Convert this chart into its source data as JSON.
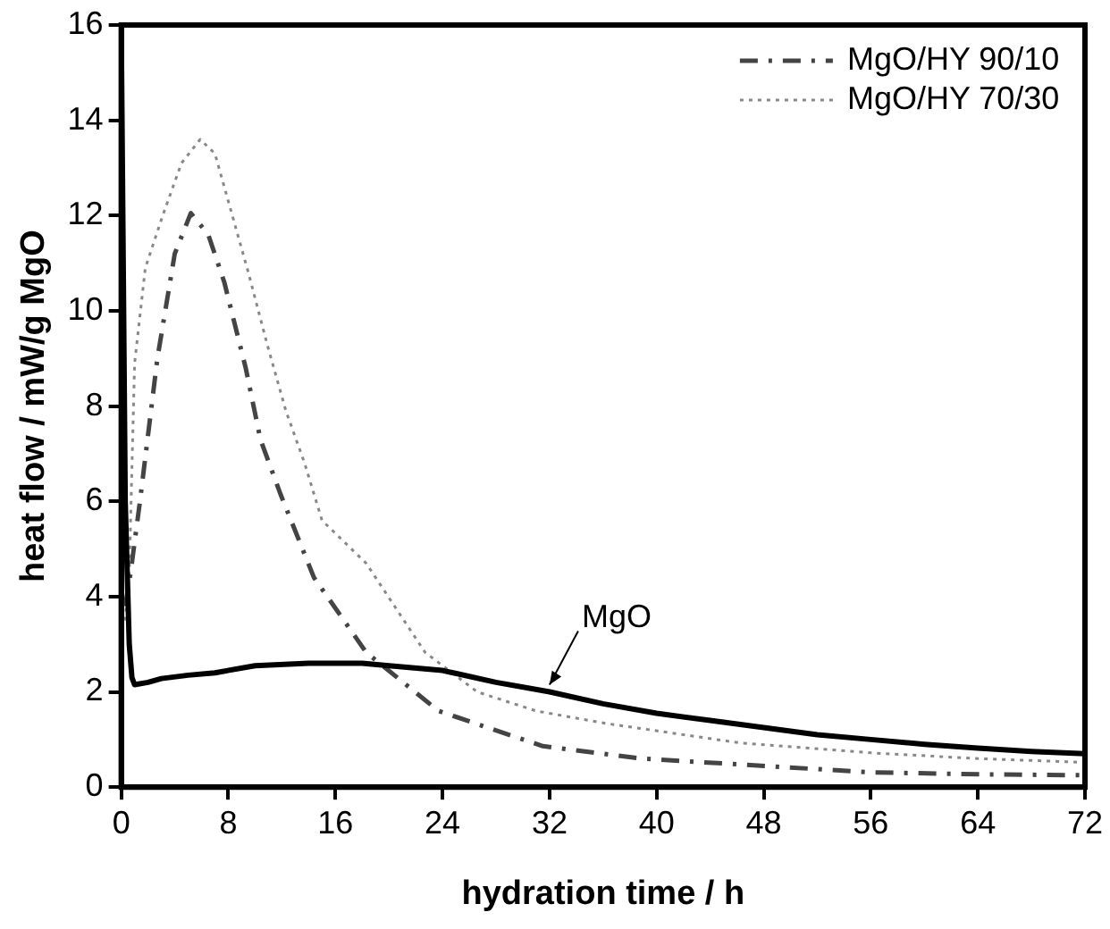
{
  "chart_data": {
    "type": "line",
    "xlabel": "hydration time / h",
    "ylabel": "heat flow / mW/g MgO",
    "xlim": [
      0,
      72
    ],
    "xticks": [
      0,
      8,
      16,
      24,
      32,
      40,
      48,
      56,
      64,
      72
    ],
    "ylim": [
      0,
      16
    ],
    "yticks": [
      0,
      2,
      4,
      6,
      8,
      10,
      12,
      14,
      16
    ],
    "grid": false,
    "legend": "top right",
    "marker": "none",
    "annotations": [
      {
        "text": "MgO",
        "x": 32,
        "y": 2.0
      }
    ],
    "series": [
      {
        "color": "#000000",
        "line_style": "solid",
        "x": [
          0,
          0.3,
          0.6,
          0.8,
          1,
          2,
          3,
          5,
          7,
          10,
          14,
          18,
          20,
          24,
          28,
          32,
          36,
          40,
          44,
          48,
          52,
          56,
          60,
          64,
          68,
          72
        ],
        "values": [
          16,
          6,
          3,
          2.3,
          2.15,
          2.2,
          2.28,
          2.35,
          2.4,
          2.55,
          2.6,
          2.6,
          2.55,
          2.45,
          2.2,
          2.0,
          1.75,
          1.55,
          1.4,
          1.25,
          1.1,
          1.0,
          0.9,
          0.82,
          0.75,
          0.7
        ]
      },
      {
        "name": "MgO/HY 90/10",
        "color": "#444444",
        "line_style": "dashed",
        "x": [
          0.3,
          0.7,
          1.4,
          2.7,
          4,
          5.2,
          6.5,
          7.7,
          9.3,
          10.4,
          11.9,
          14.4,
          18.3,
          23.7,
          31.5,
          38.9,
          47.8,
          56,
          64,
          72
        ],
        "values": [
          3.8,
          4.5,
          6.0,
          9.0,
          11.2,
          12.05,
          11.6,
          10.6,
          8.8,
          7.3,
          6.15,
          4.4,
          2.83,
          1.6,
          0.86,
          0.6,
          0.45,
          0.31,
          0.27,
          0.25
        ]
      },
      {
        "name": "MgO/HY 70/30",
        "color": "#888888",
        "line_style": "dotted",
        "x": [
          0.3,
          0.6,
          1,
          1.8,
          3.1,
          4.5,
          5.9,
          7,
          8.2,
          9.5,
          10.9,
          12.3,
          13.7,
          15,
          18.3,
          22.7,
          26.6,
          31,
          36.4,
          46.2,
          56,
          64,
          72
        ],
        "values": [
          3.5,
          4.5,
          8.9,
          10.9,
          12.0,
          13.1,
          13.6,
          13.3,
          12.1,
          10.8,
          9.3,
          7.9,
          6.8,
          5.6,
          4.7,
          2.83,
          2.0,
          1.6,
          1.33,
          0.93,
          0.72,
          0.6,
          0.52
        ]
      }
    ]
  }
}
